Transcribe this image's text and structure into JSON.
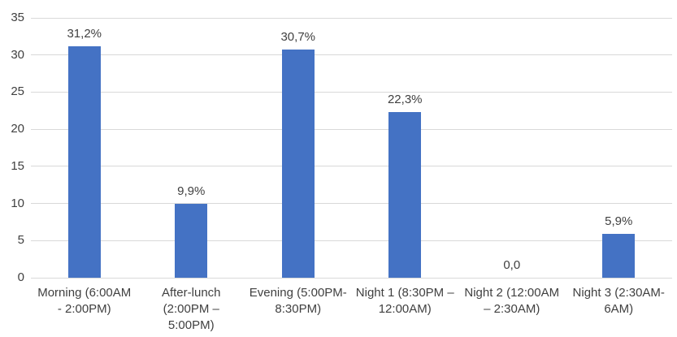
{
  "figure": {
    "background": "#ffffff"
  },
  "chart_data": {
    "type": "bar",
    "title": "",
    "xlabel": "",
    "ylabel": "",
    "categories": [
      "Morning (6:00AM - 2:00PM)",
      "After-lunch (2:00PM – 5:00PM)",
      "Evening (5:00PM- 8:30PM)",
      "Night 1 (8:30PM – 12:00AM)",
      "Night 2 (12:00AM – 2:30AM)",
      "Night 3 (2:30AM- 6AM)"
    ],
    "category_label_lines": [
      [
        "Morning (6:00AM",
        "- 2:00PM)"
      ],
      [
        "After-lunch",
        "(2:00PM –",
        "5:00PM)"
      ],
      [
        "Evening (5:00PM-",
        "8:30PM)"
      ],
      [
        "Night 1 (8:30PM –",
        "12:00AM)"
      ],
      [
        "Night 2 (12:00AM",
        "– 2:30AM)"
      ],
      [
        "Night 3 (2:30AM-",
        "6AM)"
      ]
    ],
    "values": [
      31.2,
      9.9,
      30.7,
      22.3,
      0,
      5.9
    ],
    "value_labels": [
      "31,2%",
      "9,9%",
      "30,7%",
      "22,3%",
      "0,0",
      "5,9%"
    ],
    "ylim": [
      0,
      35
    ],
    "yticks": [
      0,
      5,
      10,
      15,
      20,
      25,
      30,
      35
    ],
    "grid": true,
    "legend": false,
    "colors": {
      "bar": "#4472c4",
      "gridline": "#d9d9d9",
      "text": "#404040"
    }
  }
}
